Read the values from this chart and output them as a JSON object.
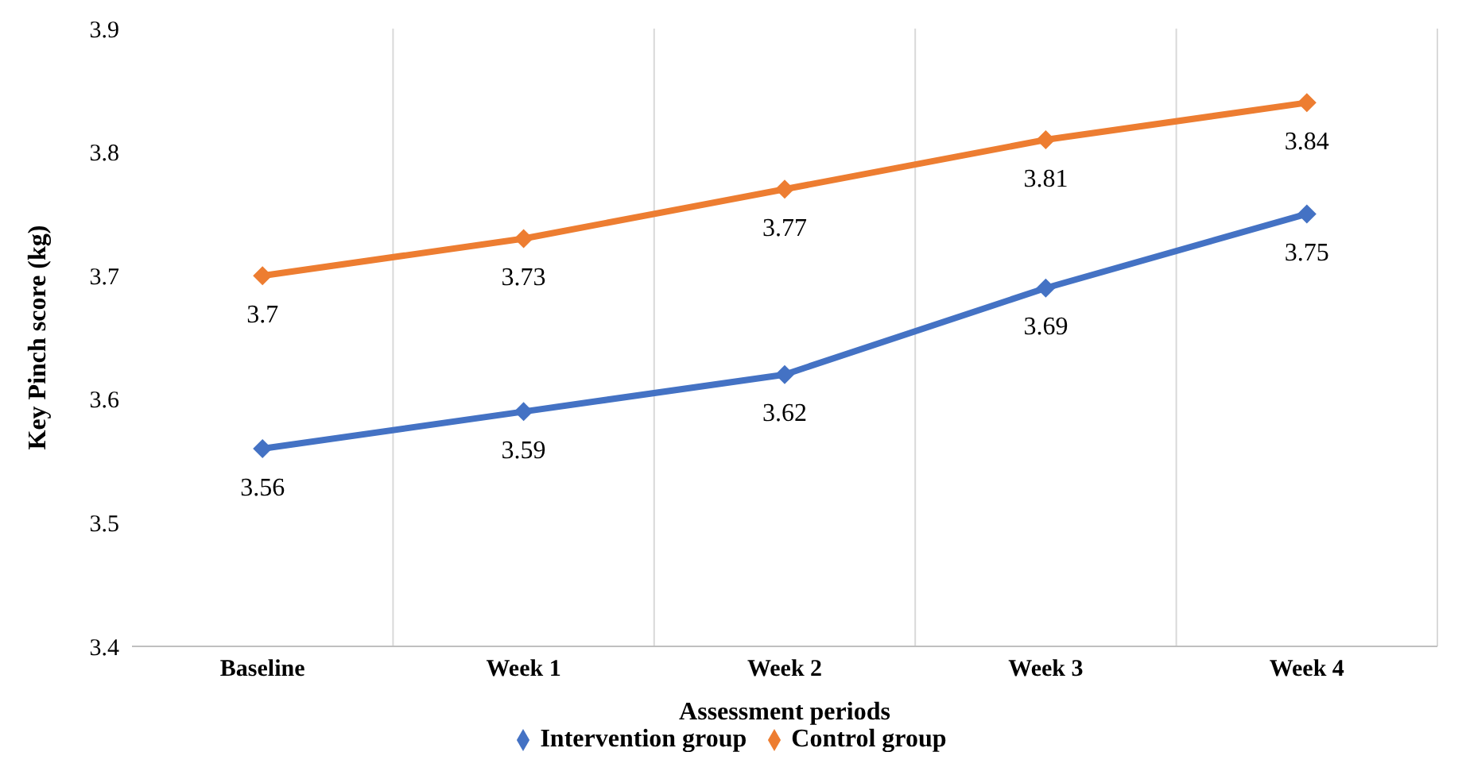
{
  "chart_data": {
    "type": "line",
    "xlabel": "Assessment periods",
    "ylabel": "Key Pinch score (kg)",
    "categories": [
      "Baseline",
      "Week 1",
      "Week 2",
      "Week 3",
      "Week 4"
    ],
    "series": [
      {
        "name": "Intervention group",
        "color": "#4472c4",
        "values": [
          3.56,
          3.59,
          3.62,
          3.69,
          3.75
        ]
      },
      {
        "name": "Control group",
        "color": "#ed7d31",
        "values": [
          3.7,
          3.73,
          3.77,
          3.81,
          3.84
        ]
      }
    ],
    "ylim": [
      3.4,
      3.9
    ],
    "yticks": [
      3.4,
      3.5,
      3.6,
      3.7,
      3.8,
      3.9
    ],
    "grid": "x",
    "legend": "bottom",
    "marker": "diamond",
    "data_labels": true,
    "line_style": "solid"
  }
}
